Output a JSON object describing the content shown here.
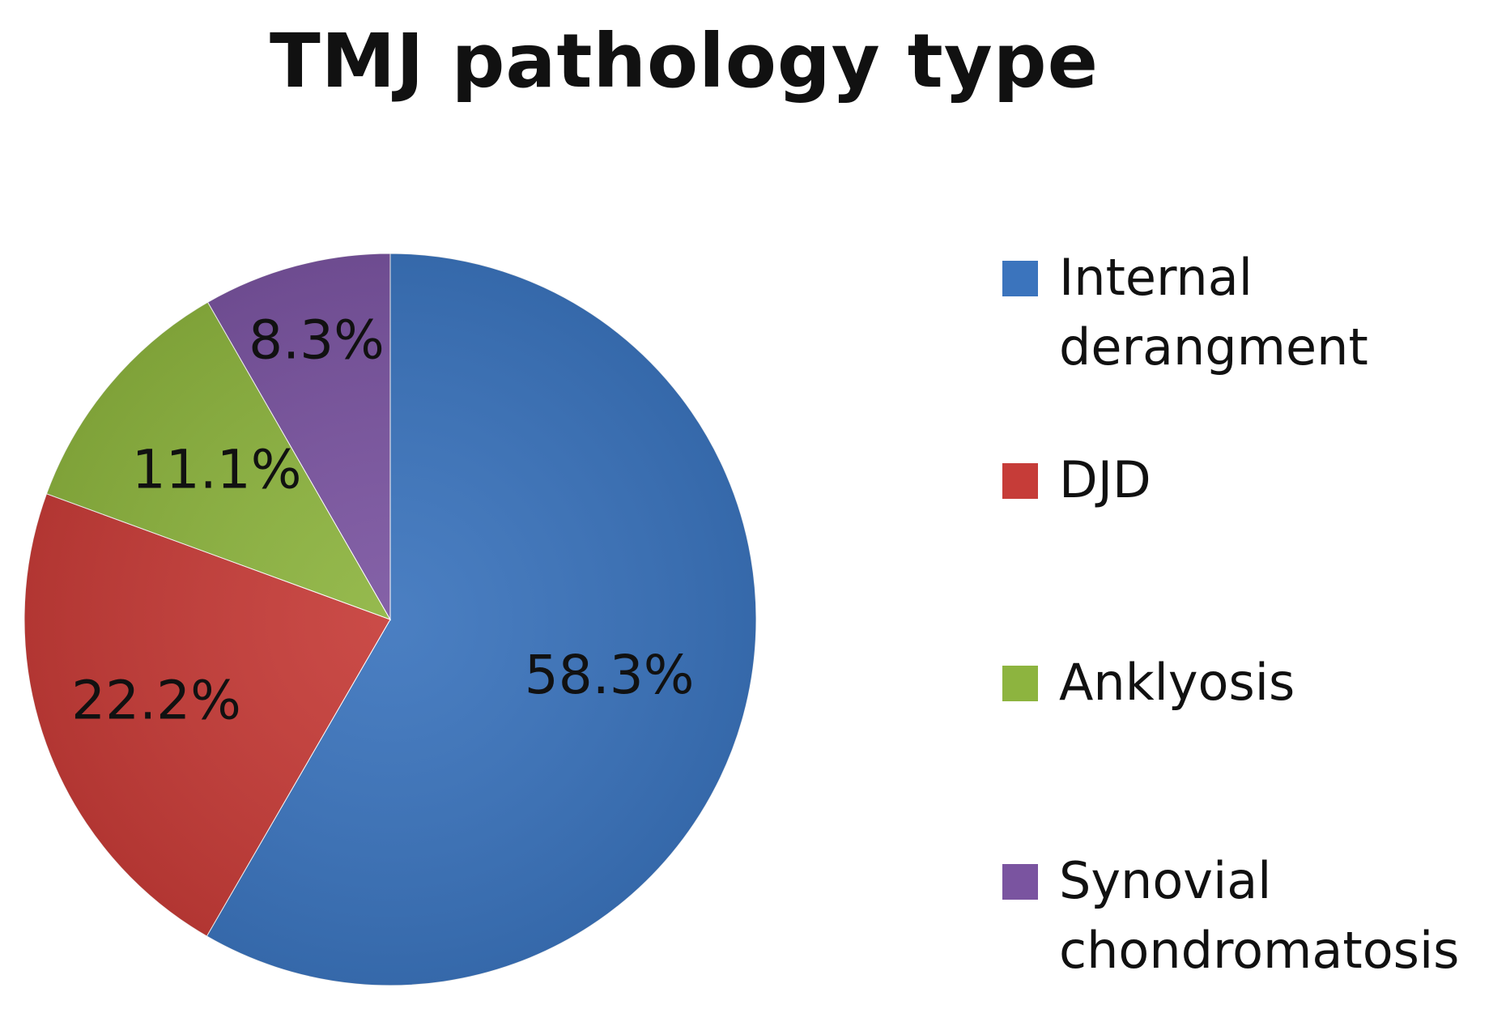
{
  "chart_data": {
    "type": "pie",
    "title": "TMJ pathology type",
    "categories": [
      "Internal derangment",
      "DJD",
      "Anklyosis",
      "Synovial chondromatosis"
    ],
    "values": [
      58.3,
      22.2,
      11.1,
      8.3
    ],
    "data_labels": [
      "58.3%",
      "22.2%",
      "11.1%",
      "8.3%"
    ],
    "colors": [
      "#3b74bd",
      "#c63c38",
      "#8db43f",
      "#7a54a0"
    ],
    "legend_position": "right",
    "start_angle": "top",
    "direction": "clockwise"
  }
}
